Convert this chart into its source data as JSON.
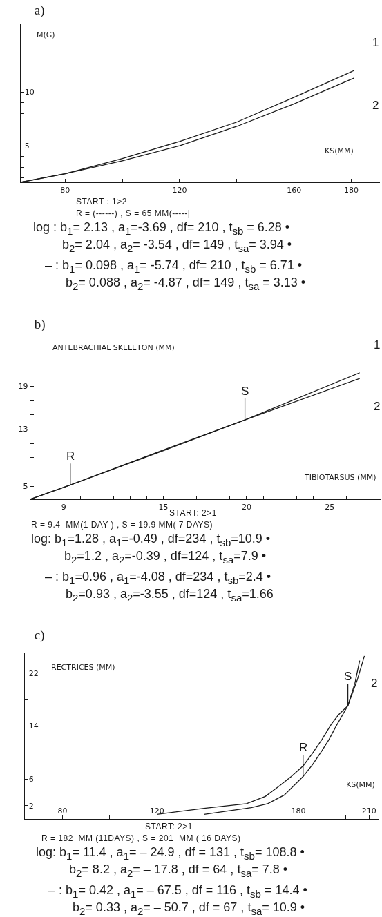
{
  "chart_data": [
    {
      "type": "line",
      "title": "a)",
      "xlabel": "KS(MM)",
      "ylabel": "M(G)",
      "xlim": [
        64.5,
        190
      ],
      "ylim": [
        1.6,
        16.3
      ],
      "xticks": [
        80,
        {
          "value": 100,
          "label": null
        },
        120,
        {
          "value": 140,
          "label": null
        },
        160,
        180
      ],
      "yticks": [
        {
          "value": 2,
          "label": null
        },
        {
          "value": 3,
          "label": null
        },
        {
          "value": 4,
          "label": null
        },
        5,
        {
          "value": 6,
          "label": null
        },
        {
          "value": 7,
          "label": null
        },
        {
          "value": 8,
          "label": null
        },
        {
          "value": 9,
          "label": null
        },
        10,
        {
          "value": 11,
          "label": null
        }
      ],
      "series": [
        {
          "name": "1",
          "color": "#1a1a1a",
          "x": [
            64.5,
            80,
            100,
            120,
            140,
            160,
            181
          ],
          "values": [
            1.6,
            2.4,
            3.8,
            5.4,
            7.2,
            9.5,
            12.0
          ]
        },
        {
          "name": "2",
          "color": "#1a1a1a",
          "x": [
            64.5,
            80,
            100,
            120,
            140,
            160,
            181
          ],
          "values": [
            1.6,
            2.4,
            3.6,
            5.0,
            6.8,
            8.9,
            11.3
          ]
        }
      ],
      "annotations": [
        "START : 1>2",
        "R = (------) , S = 65 MM(-----|",
        "log : b$_{1}$= 2.13 , a$_{1}$=-3.69 , df= 210 , t$_{sb}$ = 6.28 •",
        "b$_{2}$= 2.04 , a$_{2}$= -3.54 , df= 149 , t$_{sa}$= 3.94 •",
        "– : b$_{1}$= 0.098 , a$_{1}$= -5.74 , df= 210 , t$_{sb}$ = 6.71 •",
        "b$_{2}$= 0.088 , a$_{2}$= -4.87 , df= 149 , t$_{sa}$ = 3.13 •"
      ]
    },
    {
      "type": "line",
      "title": "b)",
      "xlabel": "TIBIOTARSUS (MM)",
      "ylabel": "ANTEBRACHIAL SKELETON (MM)",
      "xlim": [
        7,
        28.1
      ],
      "ylim": [
        3.2,
        25.9
      ],
      "xticks": [
        9,
        {
          "value": 10,
          "label": null
        },
        {
          "value": 11,
          "label": null
        },
        {
          "value": 12,
          "label": null
        },
        {
          "value": 13,
          "label": null
        },
        {
          "value": 14,
          "label": null
        },
        15,
        {
          "value": 16,
          "label": null
        },
        {
          "value": 17,
          "label": null
        },
        {
          "value": 18,
          "label": null
        },
        {
          "value": 19,
          "label": null
        },
        20,
        {
          "value": 21,
          "label": null
        },
        {
          "value": 22,
          "label": null
        },
        {
          "value": 23,
          "label": null
        },
        {
          "value": 24,
          "label": null
        },
        25,
        {
          "value": 26,
          "label": null
        },
        {
          "value": 27,
          "label": null
        }
      ],
      "yticks": [
        5,
        {
          "value": 7,
          "label": null
        },
        {
          "value": 9,
          "label": null
        },
        {
          "value": 11,
          "label": null
        },
        13,
        {
          "value": 15,
          "label": null
        },
        {
          "value": 17,
          "label": null
        },
        19
      ],
      "series": [
        {
          "name": "1",
          "color": "#1a1a1a",
          "x": [
            7,
            9.4,
            15,
            19.9,
            26.8
          ],
          "values": [
            3.2,
            5.2,
            10.1,
            14.3,
            20.9
          ]
        },
        {
          "name": "2",
          "color": "#1a1a1a",
          "x": [
            7,
            9.4,
            15,
            19.9,
            26.8
          ],
          "values": [
            3.2,
            5.2,
            10.0,
            14.3,
            20.1
          ]
        }
      ],
      "annotations": [
        "START: 2>1",
        "R = 9.4  MM(1 DAY ) , S = 19.9 MM( 7 DAYS)",
        "log: b$_{1}$=1.28 , a$_{1}$=-0.49 , df=234 , t$_{sb}$=10.9 •",
        "b$_{2}$=1.2 , a$_{2}$=-0.39 , df=124 , t$_{sa}$=7.9 •",
        "– : b$_{1}$=0.96 , a$_{1}$=-4.08 , df=234 , t$_{sb}$=2.4 •",
        "b$_{2}$=0.93 , a$_{2}$=-3.55 , df=124 , t$_{sa}$=1.66",
        {
          "text": "R",
          "x": 9.4,
          "y": 5.2
        },
        {
          "text": "S",
          "x": 19.9,
          "y": 14.3
        }
      ]
    },
    {
      "type": "line",
      "title": "c)",
      "xlabel": "KS(MM)",
      "ylabel": "RECTRICES (MM)",
      "xlim": [
        64,
        214
      ],
      "ylim": [
        0,
        25
      ],
      "xticks": [
        80,
        {
          "value": 100,
          "label": null
        },
        120,
        {
          "value": 140,
          "label": null
        },
        {
          "value": 160,
          "label": null
        },
        180,
        {
          "value": 200,
          "label": null
        },
        210
      ],
      "yticks": [
        2,
        6,
        {
          "value": 10,
          "label": null
        },
        14,
        {
          "value": 18,
          "label": null
        },
        22
      ],
      "series": [
        {
          "color": "#1a1a1a",
          "x": [
            120,
            140,
            158,
            166,
            172,
            177,
            182,
            186,
            190,
            194,
            197,
            201,
            204,
            206
          ],
          "values": [
            0.7,
            1.6,
            2.3,
            3.4,
            5.0,
            6.4,
            8.0,
            9.9,
            12,
            14.3,
            15.7,
            17.1,
            20.5,
            23.9
          ]
        },
        {
          "name": "2",
          "color": "#1a1a1a",
          "x": [
            140,
            160,
            167,
            174,
            178,
            182,
            186,
            190,
            193,
            196,
            201,
            205,
            208
          ],
          "values": [
            0.7,
            1.7,
            2.3,
            3.6,
            5.0,
            6.4,
            8.2,
            10.3,
            12,
            14,
            17.1,
            21,
            24.6
          ]
        }
      ],
      "annotations": [
        "START: 2>1",
        "R = 182  MM (11DAYS) , S = 201  MM ( 16 DAYS)",
        "log: b$_{1}$= 11.4 , a$_{1}$= – 24.9 , df = 131 , t$_{sb}$= 108.8 •",
        "b$_{2}$= 8.2 , a$_{2}$= – 17.8 , df = 64 , t$_{sa}$= 7.8 •",
        "– : b$_{1}$= 0.42 , a$_{1}$= – 67.5 , df = 116 , t$_{sb}$ = 14.4 •",
        "b$_{2}$= 0.33 , a$_{2}$= – 50.7 , df = 67 , t$_{sa}$= 10.9 •",
        {
          "text": "R",
          "x": 182,
          "y": 6.4
        },
        {
          "text": "S",
          "x": 201,
          "y": 17.1
        }
      ]
    }
  ]
}
